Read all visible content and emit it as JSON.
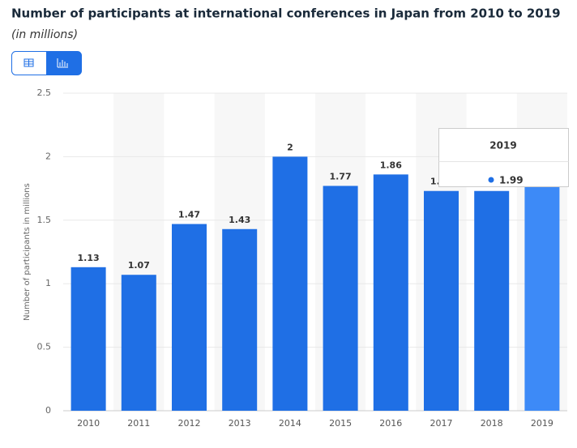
{
  "chart_data": {
    "type": "bar",
    "title": "Number of participants at international conferences in Japan from 2010 to 2019",
    "subtitle": "(in millions)",
    "y_axis_label": "Number of participants in millions",
    "categories": [
      "2010",
      "2011",
      "2012",
      "2013",
      "2014",
      "2015",
      "2016",
      "2017",
      "2018",
      "2019"
    ],
    "values": [
      1.13,
      1.07,
      1.47,
      1.43,
      2,
      1.77,
      1.86,
      1.73,
      1.73,
      1.99
    ],
    "color": "#1f6fe5",
    "highlight_color": "#3d8af7",
    "highlight_index": 9,
    "ylim": [
      0,
      2.5
    ],
    "yticks": [
      0,
      0.5,
      1,
      1.5,
      2,
      2.5
    ],
    "grid": true
  }
}
